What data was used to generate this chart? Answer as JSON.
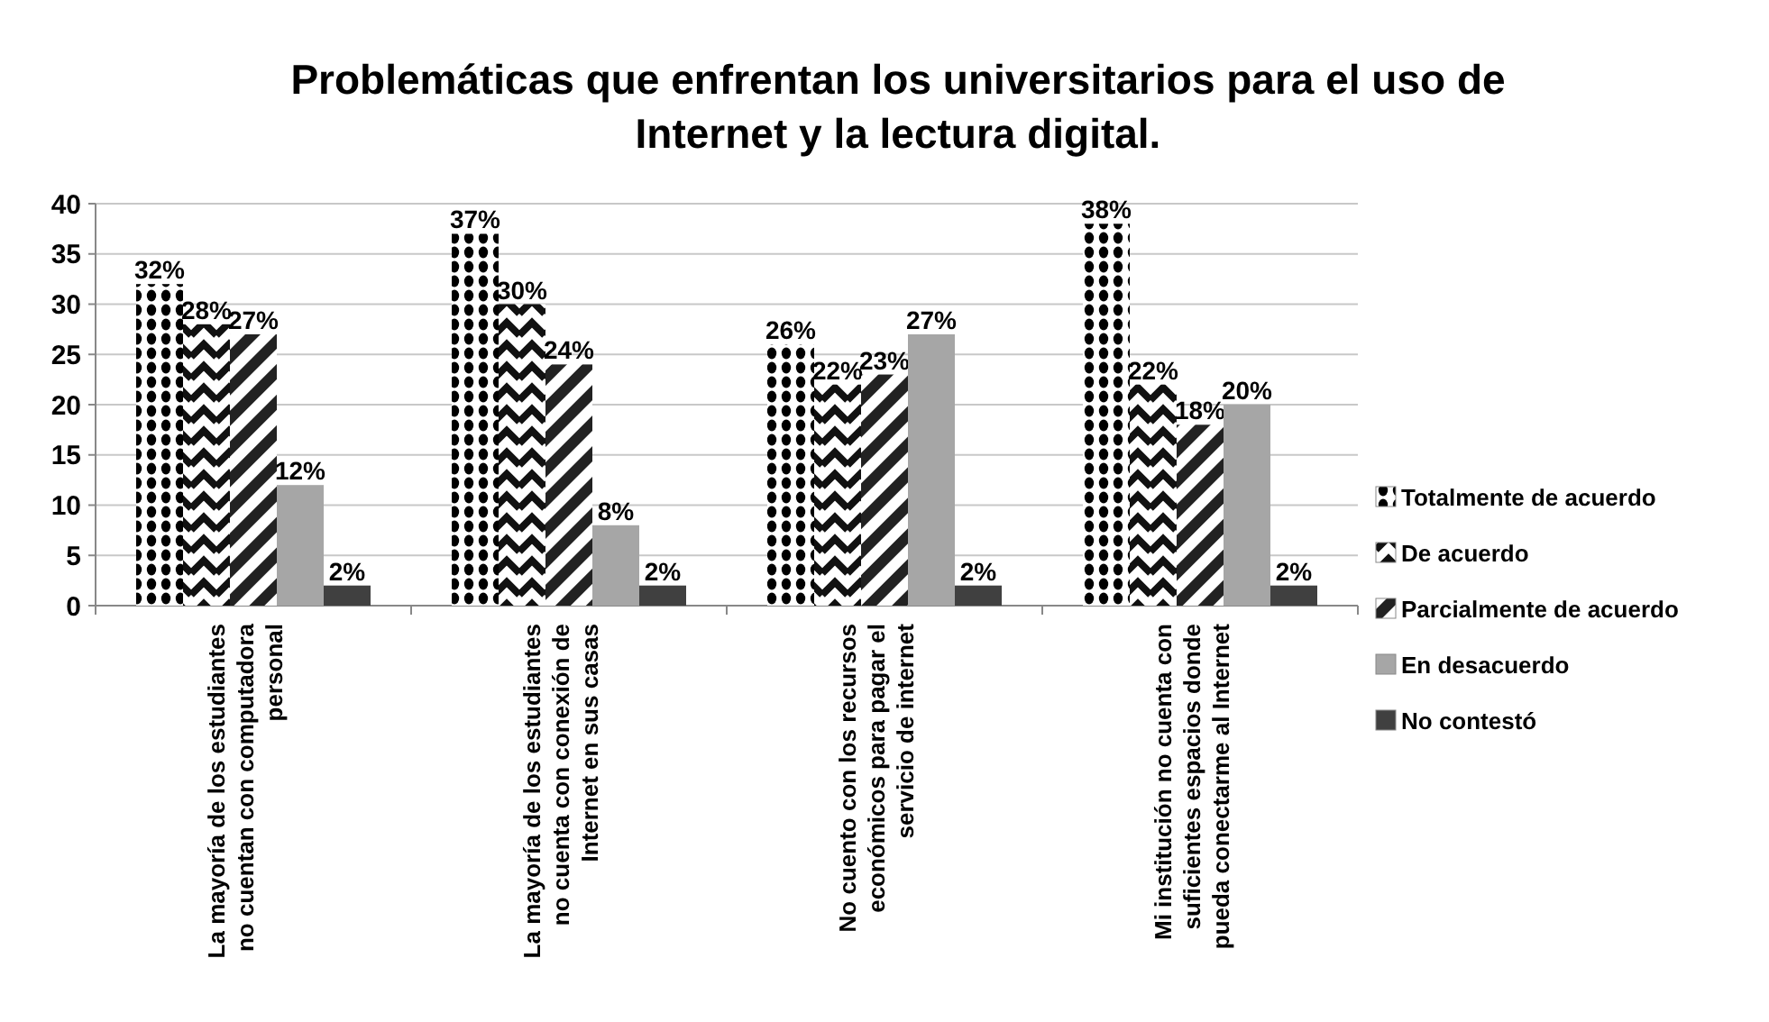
{
  "chart_data": {
    "type": "bar",
    "title": "Problemáticas que enfrentan los universitarios para el uso de Internet y la lectura digital.",
    "categories": [
      "La mayoría de los estudiantes no cuentan con computadora personal",
      "La mayoría de los estudiantes no cuenta con conexión de Internet en sus casas",
      "No cuento con los recursos económicos para pagar el servicio de internet",
      "Mi institución no cuenta con suficientes espacios donde pueda conectarme al Internet"
    ],
    "series": [
      {
        "name": "Totalmente de acuerdo",
        "color": "#000000",
        "values": [
          32,
          37,
          26,
          38
        ],
        "value_labels": [
          "32%",
          "37%",
          "26%",
          "38%"
        ]
      },
      {
        "name": "De acuerdo",
        "color": "#111111",
        "values": [
          28,
          30,
          22,
          22
        ],
        "value_labels": [
          "28%",
          "30%",
          "22%",
          "22%"
        ]
      },
      {
        "name": "Parcialmente de acuerdo",
        "color": "#222222",
        "values": [
          27,
          24,
          23,
          18
        ],
        "value_labels": [
          "27%",
          "24%",
          "23%",
          "18%"
        ]
      },
      {
        "name": "En desacuerdo",
        "color": "#a6a6a6",
        "values": [
          12,
          8,
          27,
          20
        ],
        "value_labels": [
          "12%",
          "8%",
          "27%",
          "20%"
        ]
      },
      {
        "name": "No contestó",
        "color": "#404040",
        "values": [
          2,
          2,
          2,
          2
        ],
        "value_labels": [
          "2%",
          "2%",
          "2%",
          "2%"
        ]
      }
    ],
    "ylim": [
      0,
      40
    ],
    "yticks": [
      0,
      5,
      10,
      15,
      20,
      25,
      30,
      35,
      40
    ],
    "grid": "y",
    "legend": "right"
  }
}
